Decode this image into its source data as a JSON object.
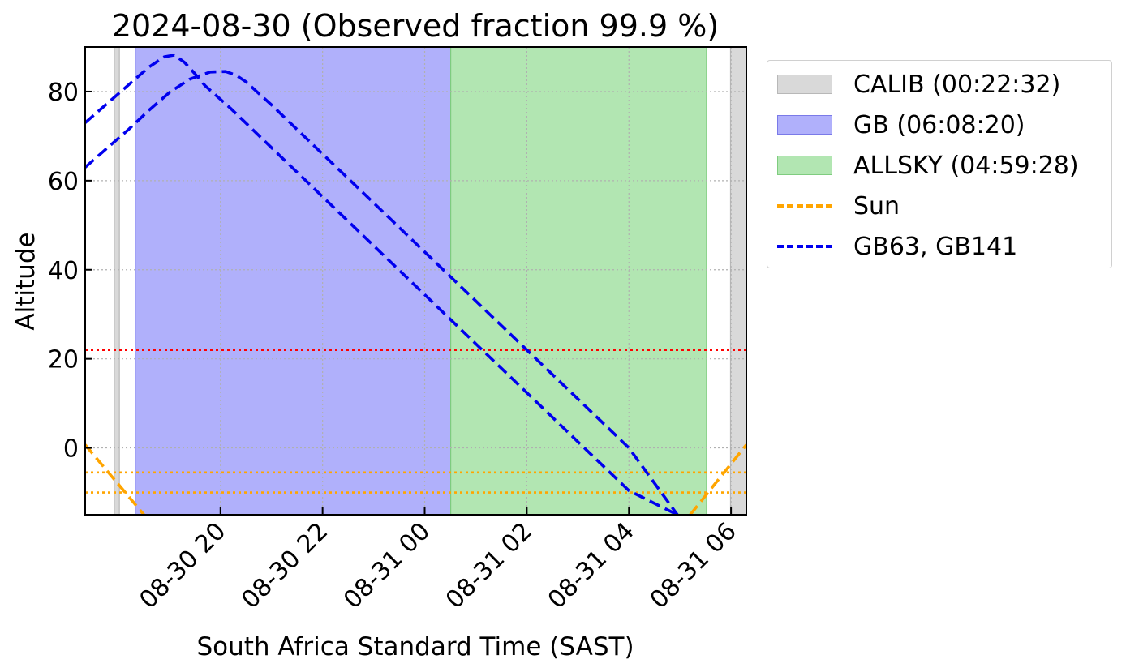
{
  "chart_data": {
    "type": "line",
    "title": "2024-08-30 (Observed fraction 99.9 %)",
    "xlabel": "South Africa Standard Time (SAST)",
    "ylabel": "Altitude",
    "x_unit": "hours",
    "xlim": [
      17.35,
      30.3
    ],
    "ylim": [
      -15,
      90
    ],
    "x_ticks": [
      {
        "x": 20,
        "label": "08-30 20"
      },
      {
        "x": 22,
        "label": "08-30 22"
      },
      {
        "x": 24,
        "label": "08-31 00"
      },
      {
        "x": 26,
        "label": "08-31 02"
      },
      {
        "x": 28,
        "label": "08-31 04"
      },
      {
        "x": 30,
        "label": "08-31 06"
      }
    ],
    "y_ticks": [
      0,
      20,
      40,
      60,
      80
    ],
    "grid": true,
    "spans": [
      {
        "name": "CALIB (00:22:32)",
        "color": "#d9d9d9",
        "ranges": [
          [
            17.92,
            18.02
          ],
          [
            29.99,
            30.31
          ]
        ]
      },
      {
        "name": "GB (06:08:20)",
        "color": "#b0b0fb",
        "ranges": [
          [
            18.33,
            24.51
          ]
        ]
      },
      {
        "name": "ALLSKY (04:59:28)",
        "color": "#b2e6b2",
        "ranges": [
          [
            24.51,
            29.52
          ]
        ]
      }
    ],
    "hlines": [
      {
        "y": 22,
        "color": "#ff0000"
      },
      {
        "y": -5.5,
        "color": "#ffa500"
      },
      {
        "y": -10,
        "color": "#ffa500"
      }
    ],
    "series": [
      {
        "name": "Sun",
        "color": "#ffa500",
        "segments": [
          {
            "x": [
              17.35,
              18.5
            ],
            "y": [
              0.7,
              -15
            ]
          },
          {
            "x": [
              29.2,
              30.3
            ],
            "y": [
              -15,
              0.7
            ]
          }
        ]
      },
      {
        "name": "GB63, GB141",
        "color": "#0000ee",
        "segments": [
          {
            "x": [
              17.35,
              17.8,
              18.2,
              18.6,
              18.9,
              19.1,
              19.3,
              19.5,
              19.7,
              20.2,
              21,
              22,
              23,
              24,
              25,
              26,
              27,
              28,
              28.95
            ],
            "y": [
              73,
              77.5,
              81.5,
              85.5,
              87.8,
              88.2,
              86.5,
              84,
              81.3,
              76.2,
              67.4,
              56.4,
              45.4,
              34.4,
              23.4,
              12.4,
              1.4,
              -9.6,
              -15
            ]
          },
          {
            "x": [
              17.35,
              17.8,
              18.2,
              18.6,
              19,
              19.4,
              19.8,
              20.1,
              20.3,
              20.5,
              20.7,
              21,
              22,
              23,
              24,
              25,
              26,
              27,
              28,
              28.95
            ],
            "y": [
              63,
              67.5,
              71.5,
              75.8,
              79.8,
              82.8,
              84.4,
              84.5,
              83.7,
              82.2,
              80.1,
              77,
              66,
              55,
              44,
              33,
              22,
              11,
              0,
              -15
            ]
          }
        ]
      }
    ],
    "legend": {
      "position": "outside-right",
      "entries": [
        {
          "label": "CALIB (00:22:32)",
          "kind": "patch",
          "color": "#d9d9d9",
          "edge": "#b8b8b8"
        },
        {
          "label": "GB (06:08:20)",
          "kind": "patch",
          "color": "#b0b0fb",
          "edge": "#7a7ae8"
        },
        {
          "label": "ALLSKY (04:59:28)",
          "kind": "patch",
          "color": "#b2e6b2",
          "edge": "#7fcc7f"
        },
        {
          "label": "Sun",
          "kind": "line",
          "color": "#ffa500"
        },
        {
          "label": "GB63, GB141",
          "kind": "line",
          "color": "#0000ee"
        }
      ]
    }
  }
}
